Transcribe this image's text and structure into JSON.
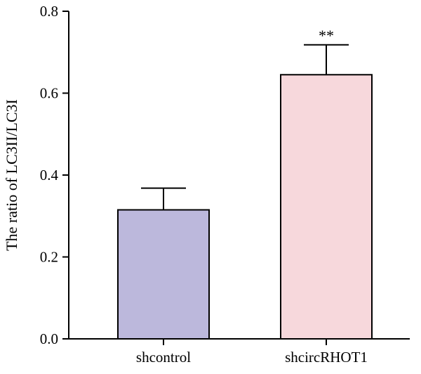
{
  "chart_data": {
    "type": "bar",
    "categories": [
      "shcontrol",
      "shcircRHOT1"
    ],
    "values": [
      0.315,
      0.645
    ],
    "errors": [
      0.053,
      0.073
    ],
    "colors": [
      "#bcb8dc",
      "#f7d8dc"
    ],
    "bar_edge_color": "#000000",
    "ylabel": "The ratio of LC3II/LC3I",
    "xlabel": "",
    "title": "",
    "ylim": [
      0,
      0.8
    ],
    "yticks": [
      "0.0",
      "0.2",
      "0.4",
      "0.6",
      "0.8"
    ],
    "annotations": [
      "",
      "**"
    ],
    "grid": false,
    "legend": "none"
  }
}
